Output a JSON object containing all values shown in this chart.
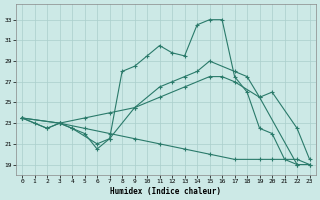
{
  "xlabel": "Humidex (Indice chaleur)",
  "xlim": [
    -0.5,
    23.5
  ],
  "ylim": [
    18.0,
    34.5
  ],
  "xticks": [
    0,
    1,
    2,
    3,
    4,
    5,
    6,
    7,
    8,
    9,
    10,
    11,
    12,
    13,
    14,
    15,
    16,
    17,
    18,
    19,
    20,
    21,
    22,
    23
  ],
  "yticks": [
    19,
    21,
    23,
    25,
    27,
    29,
    31,
    33
  ],
  "background_color": "#cce9e6",
  "grid_color": "#aacfcc",
  "line_color": "#2a7a6a",
  "line1_x": [
    0,
    1,
    2,
    3,
    4,
    5,
    6,
    7,
    8,
    9,
    10,
    11,
    12,
    13,
    14,
    15,
    16,
    17,
    18,
    19,
    20,
    21,
    22
  ],
  "line1_y": [
    23.5,
    23.0,
    22.5,
    23.0,
    22.5,
    22.0,
    20.5,
    21.5,
    28.0,
    28.5,
    29.5,
    30.5,
    29.8,
    29.5,
    32.5,
    33.0,
    33.0,
    27.5,
    26.0,
    22.5,
    22.0,
    19.5,
    19.0
  ],
  "line2_x": [
    0,
    2,
    3,
    4,
    6,
    7,
    9,
    11,
    12,
    13,
    14,
    15,
    17,
    18,
    19,
    22,
    23
  ],
  "line2_y": [
    23.5,
    22.5,
    23.0,
    22.5,
    21.0,
    21.5,
    24.5,
    26.5,
    27.0,
    27.5,
    28.0,
    29.0,
    28.0,
    27.5,
    25.5,
    19.0,
    19.0
  ],
  "line3_x": [
    0,
    3,
    5,
    7,
    9,
    11,
    13,
    15,
    16,
    17,
    19,
    20,
    22,
    23
  ],
  "line3_y": [
    23.5,
    23.0,
    23.5,
    24.0,
    24.5,
    25.5,
    26.5,
    27.5,
    27.5,
    27.0,
    25.5,
    26.0,
    22.5,
    19.5
  ],
  "line4_x": [
    0,
    3,
    5,
    7,
    9,
    11,
    13,
    15,
    17,
    19,
    20,
    22,
    23
  ],
  "line4_y": [
    23.5,
    23.0,
    22.5,
    22.0,
    21.5,
    21.0,
    20.5,
    20.0,
    19.5,
    19.5,
    19.5,
    19.5,
    19.0
  ]
}
